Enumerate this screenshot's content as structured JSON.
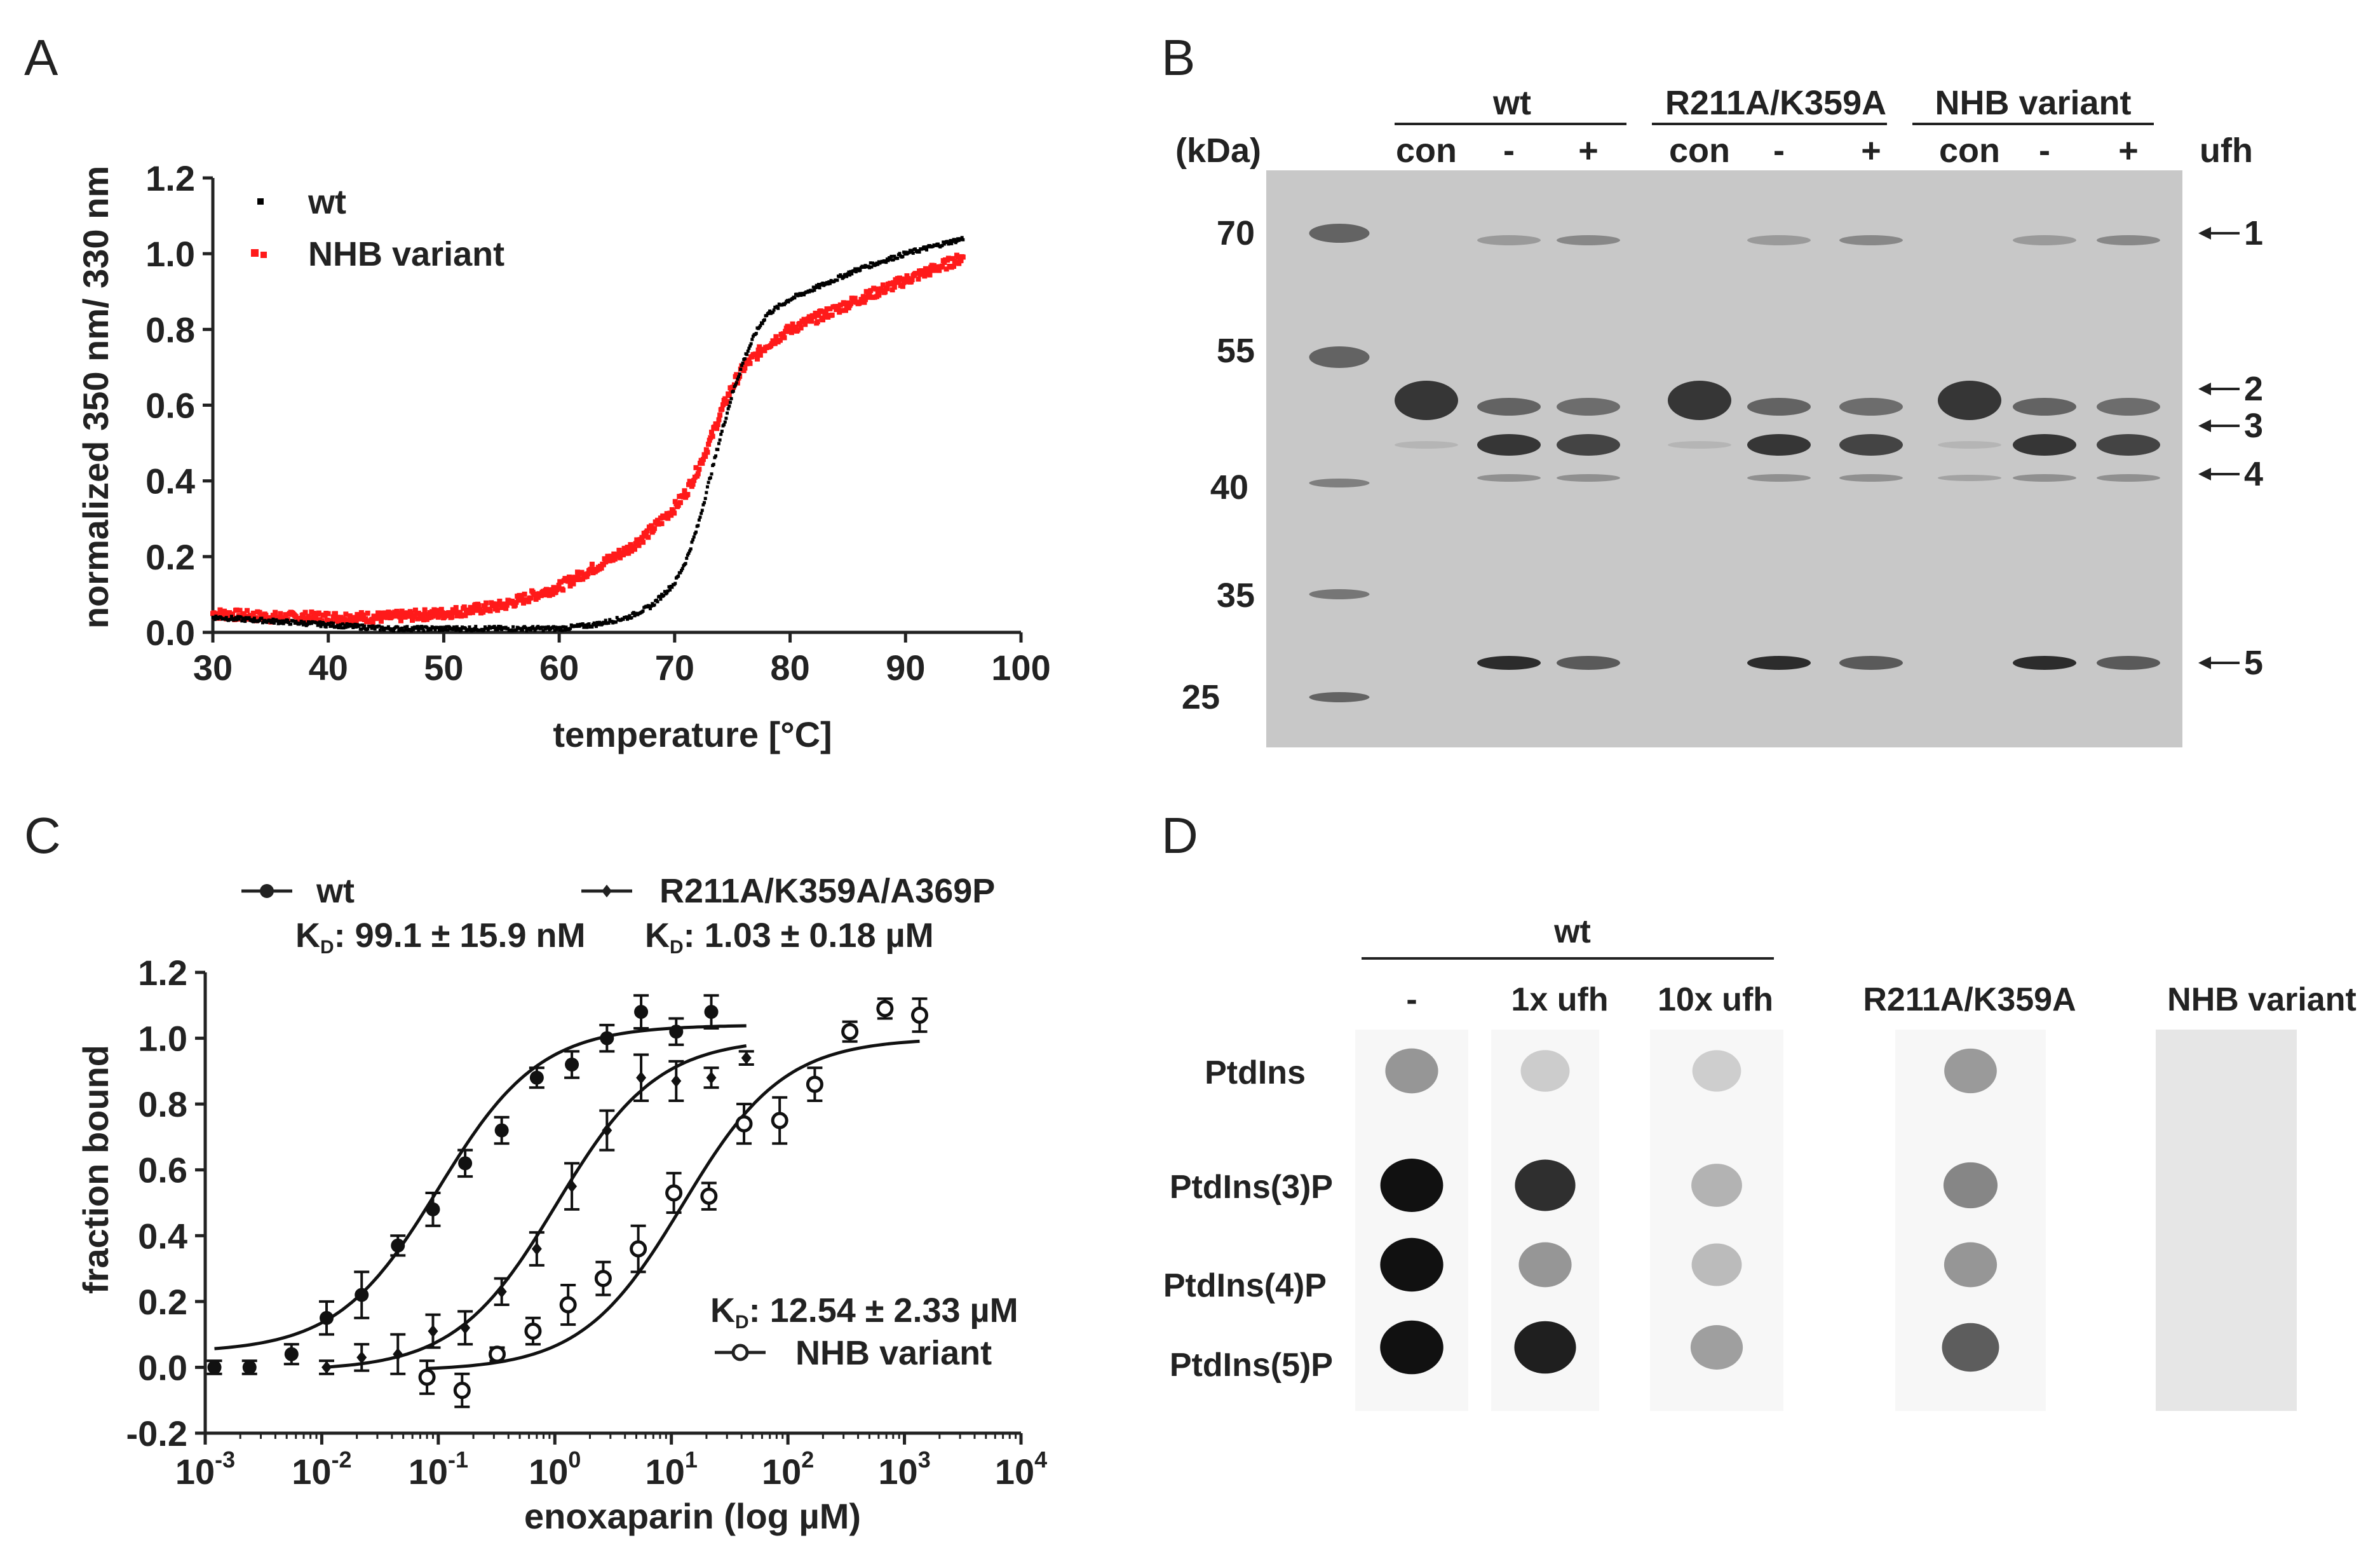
{
  "panels": {
    "a": "A",
    "b": "B",
    "c": "C",
    "d": "D"
  },
  "chart_data": [
    {
      "id": "A",
      "type": "scatter",
      "xlabel": "temperature [°C]",
      "ylabel": "normalized 350 nm/ 330 nm",
      "xlim": [
        30,
        100
      ],
      "ylim": [
        0.0,
        1.2
      ],
      "xticks": [
        "30",
        "40",
        "50",
        "60",
        "70",
        "80",
        "90",
        "100"
      ],
      "yticks": [
        "0.0",
        "0.2",
        "0.4",
        "0.6",
        "0.8",
        "1.0",
        "1.2"
      ],
      "legend_position": "top-left",
      "series": [
        {
          "name": "wt",
          "color": "#000000",
          "x": [
            30,
            35,
            40,
            45,
            50,
            55,
            60,
            63,
            66,
            68,
            70,
            71,
            72,
            73,
            74,
            75,
            76,
            77,
            78,
            80,
            83,
            86,
            90,
            95
          ],
          "y": [
            0.04,
            0.03,
            0.02,
            0.01,
            0.01,
            0.01,
            0.01,
            0.02,
            0.04,
            0.07,
            0.13,
            0.19,
            0.28,
            0.4,
            0.52,
            0.63,
            0.72,
            0.79,
            0.84,
            0.88,
            0.92,
            0.96,
            1.0,
            1.04
          ]
        },
        {
          "name": "NHB variant",
          "color": "#ff1a1a",
          "x": [
            30,
            35,
            40,
            45,
            50,
            55,
            60,
            63,
            66,
            68,
            70,
            71,
            72,
            73,
            74,
            75,
            76,
            77,
            78,
            80,
            83,
            86,
            90,
            95
          ],
          "y": [
            0.05,
            0.04,
            0.04,
            0.04,
            0.05,
            0.07,
            0.12,
            0.17,
            0.22,
            0.27,
            0.33,
            0.37,
            0.43,
            0.5,
            0.58,
            0.65,
            0.7,
            0.73,
            0.76,
            0.8,
            0.84,
            0.88,
            0.93,
            0.99
          ]
        }
      ]
    },
    {
      "id": "C",
      "type": "scatter",
      "xlabel": "enoxaparin (log µM)",
      "ylabel": "fraction bound",
      "xscale": "log",
      "xlim_exp": [
        -3,
        4
      ],
      "ylim": [
        -0.2,
        1.2
      ],
      "xtick_exps": [
        "-3",
        "-2",
        "-1",
        "0",
        "1",
        "2",
        "3",
        "4"
      ],
      "yticks": [
        "-0.2",
        "0.0",
        "0.2",
        "0.4",
        "0.6",
        "0.8",
        "1.0",
        "1.2"
      ],
      "series": [
        {
          "name": "wt",
          "kd_text": "99.1 ± 15.9 nM",
          "marker": "filled-circle",
          "x": [
            0.0012,
            0.0024,
            0.0055,
            0.011,
            0.022,
            0.045,
            0.09,
            0.17,
            0.35,
            0.7,
            1.4,
            2.8,
            5.5,
            11,
            22
          ],
          "y": [
            0.0,
            0.0,
            0.04,
            0.15,
            0.22,
            0.37,
            0.48,
            0.62,
            0.72,
            0.88,
            0.92,
            1.0,
            1.08,
            1.02,
            1.08
          ],
          "err": [
            0.02,
            0.02,
            0.03,
            0.05,
            0.07,
            0.03,
            0.05,
            0.04,
            0.04,
            0.03,
            0.04,
            0.04,
            0.05,
            0.04,
            0.05
          ],
          "fit": {
            "kd": 0.1,
            "top": 1.04,
            "bottom": 0.045,
            "xrange": [
              0.0012,
              44
            ]
          }
        },
        {
          "name": "R211A/K359A/A369P",
          "kd_text": "1.03 ± 0.18 µM",
          "marker": "filled-diamond",
          "x": [
            0.011,
            0.022,
            0.045,
            0.09,
            0.17,
            0.35,
            0.7,
            1.4,
            2.8,
            5.5,
            11,
            22,
            44
          ],
          "y": [
            0.0,
            0.03,
            0.04,
            0.11,
            0.12,
            0.23,
            0.36,
            0.55,
            0.72,
            0.88,
            0.87,
            0.88,
            0.94
          ],
          "err": [
            0.02,
            0.04,
            0.06,
            0.05,
            0.05,
            0.04,
            0.05,
            0.07,
            0.06,
            0.07,
            0.06,
            0.03,
            0.02
          ],
          "fit": {
            "kd": 1.03,
            "top": 1.0,
            "bottom": -0.01,
            "xrange": [
              0.011,
              44
            ]
          }
        },
        {
          "name": "NHB variant",
          "kd_text": "12.54 ± 2.33 µM",
          "marker": "open-circle",
          "x": [
            0.08,
            0.16,
            0.32,
            0.65,
            1.3,
            2.6,
            5.2,
            10.5,
            21,
            42,
            85,
            170,
            340,
            680,
            1350
          ],
          "y": [
            -0.03,
            -0.07,
            0.04,
            0.11,
            0.19,
            0.27,
            0.36,
            0.53,
            0.52,
            0.74,
            0.75,
            0.86,
            1.02,
            1.09,
            1.07
          ],
          "err": [
            0.05,
            0.05,
            0.02,
            0.04,
            0.06,
            0.05,
            0.07,
            0.06,
            0.04,
            0.06,
            0.07,
            0.05,
            0.03,
            0.03,
            0.05
          ],
          "fit": {
            "kd": 12.54,
            "top": 1.0,
            "bottom": -0.01,
            "xrange": [
              0.08,
              1350
            ]
          }
        }
      ],
      "legend": {
        "wt_label": "wt",
        "mut_label": "R211A/K359A/A369P",
        "nhb_label": "NHB variant",
        "kd_prefix": "K",
        "kd_sub": "D",
        "kd_wt": ": 99.1 ± 15.9 nM",
        "kd_mut": ": 1.03 ± 0.18 µM",
        "kd_nhb": ": 12.54 ± 2.33 µM"
      }
    }
  ],
  "gel": {
    "kda_label": "(kDa)",
    "markers": [
      "70",
      "55",
      "40",
      "35",
      "25"
    ],
    "groups": [
      "wt",
      "R211A/K359A",
      "NHB variant"
    ],
    "lanes": [
      "con",
      "-",
      "+",
      "con",
      "-",
      "+",
      "con",
      "-",
      "+"
    ],
    "ufh_label": "ufh",
    "band_labels": [
      "1",
      "2",
      "3",
      "4",
      "5"
    ]
  },
  "dotblot": {
    "group_label": "wt",
    "columns": [
      "-",
      "1x ufh",
      "10x ufh",
      "R211A/K359A",
      "NHB variant"
    ],
    "rows": [
      "PtdIns",
      "PtdIns(3)P",
      "PtdIns(4)P",
      "PtdIns(5)P"
    ],
    "intensity": [
      [
        0.3,
        0.04,
        0.03,
        0.28,
        0.0
      ],
      [
        0.95,
        0.8,
        0.16,
        0.38,
        0.0
      ],
      [
        0.97,
        0.3,
        0.12,
        0.3,
        0.0
      ],
      [
        0.98,
        0.88,
        0.26,
        0.58,
        0.0
      ]
    ]
  },
  "colors": {
    "wt": "#000000",
    "nhb": "#ff1a1a",
    "gel_bg": "#c8c8c8",
    "ink": "#222222"
  }
}
